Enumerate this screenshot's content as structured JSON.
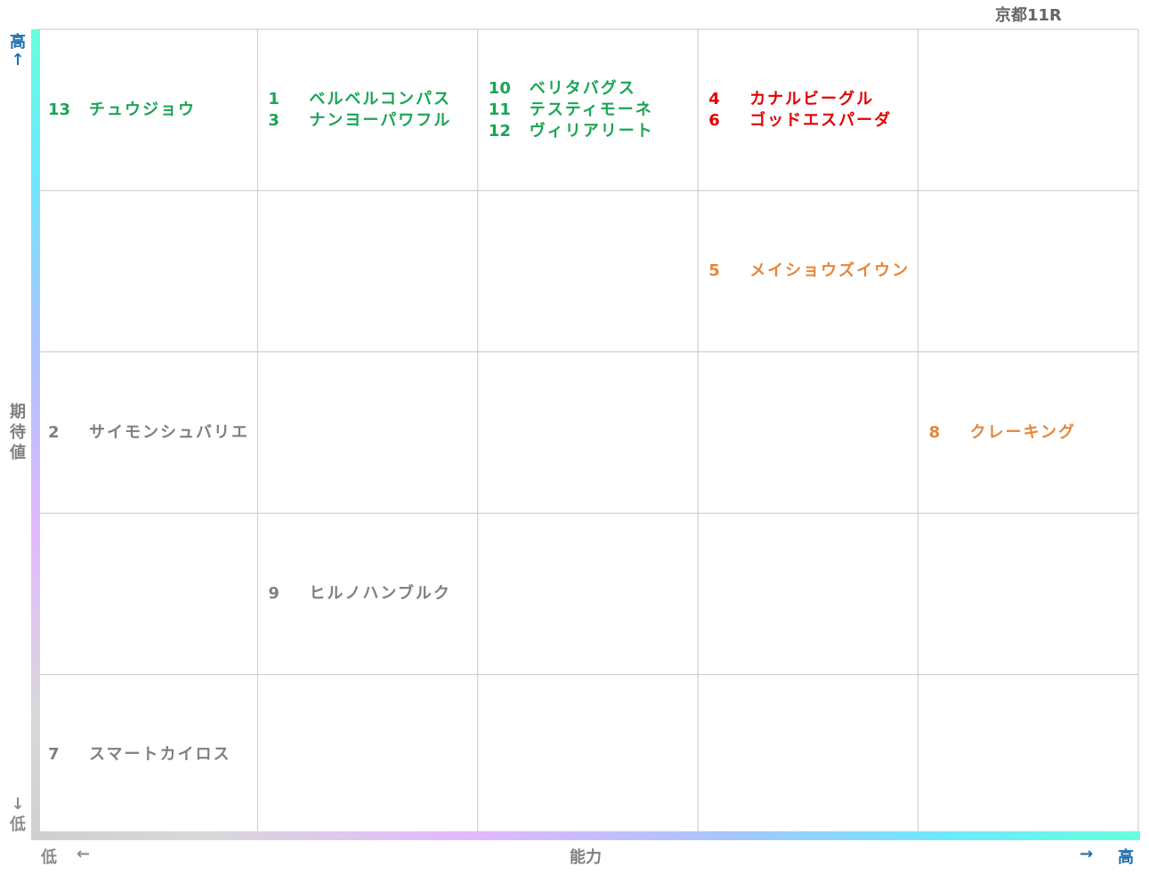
{
  "title": "京都11R",
  "y_axis": {
    "label": "期待値",
    "high": "高",
    "high_arrow": "↑",
    "low": "低",
    "low_arrow": "↓"
  },
  "x_axis": {
    "label": "能力",
    "low": "低",
    "low_arrow": "←",
    "high": "高",
    "high_arrow": "→"
  },
  "colors": {
    "green": "#1aa455",
    "red": "#e00000",
    "orange": "#e6863a",
    "gray": "#7f7f7f",
    "axis_label": "#1f6fb0",
    "axis_low_label": "#8c8c8c"
  },
  "chart_data": {
    "type": "table",
    "grid": true,
    "columns": 5,
    "rows": 5,
    "x_levels": [
      "1",
      "2",
      "3",
      "4",
      "5"
    ],
    "y_levels": [
      "5",
      "4",
      "3",
      "2",
      "1"
    ],
    "cells": [
      {
        "row": 0,
        "col": 0,
        "color": "green",
        "horses": [
          {
            "num": "13",
            "name": "チュウジョウ"
          }
        ]
      },
      {
        "row": 0,
        "col": 1,
        "color": "green",
        "horses": [
          {
            "num": "1",
            "name": "ベルベルコンパス"
          },
          {
            "num": "3",
            "name": "ナンヨーパワフル"
          }
        ]
      },
      {
        "row": 0,
        "col": 2,
        "color": "green",
        "horses": [
          {
            "num": "10",
            "name": "ベリタバグス"
          },
          {
            "num": "11",
            "name": "テスティモーネ"
          },
          {
            "num": "12",
            "name": "ヴィリアリート"
          }
        ]
      },
      {
        "row": 0,
        "col": 3,
        "color": "red",
        "horses": [
          {
            "num": "4",
            "name": "カナルビーグル"
          },
          {
            "num": "6",
            "name": "ゴッドエスパーダ"
          }
        ]
      },
      {
        "row": 1,
        "col": 3,
        "color": "orange",
        "horses": [
          {
            "num": "5",
            "name": "メイショウズイウン"
          }
        ]
      },
      {
        "row": 2,
        "col": 0,
        "color": "gray",
        "horses": [
          {
            "num": "2",
            "name": "サイモンシュバリエ"
          }
        ]
      },
      {
        "row": 2,
        "col": 4,
        "color": "orange",
        "horses": [
          {
            "num": "8",
            "name": "クレーキング"
          }
        ]
      },
      {
        "row": 3,
        "col": 1,
        "color": "gray",
        "horses": [
          {
            "num": "9",
            "name": "ヒルノハンブルク"
          }
        ]
      },
      {
        "row": 4,
        "col": 0,
        "color": "gray",
        "horses": [
          {
            "num": "7",
            "name": "スマートカイロス"
          }
        ]
      }
    ]
  }
}
